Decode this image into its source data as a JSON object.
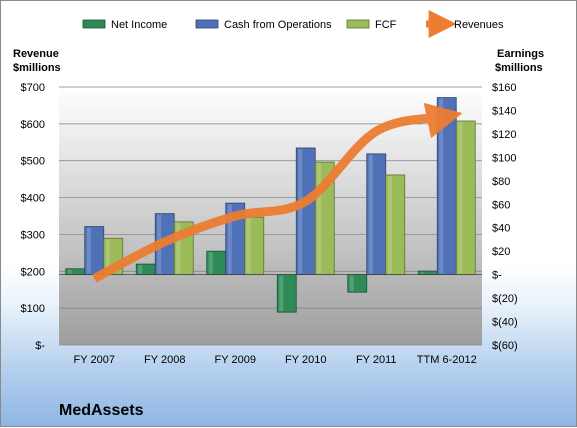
{
  "chart_data": {
    "type": "bar",
    "title": "MedAssets",
    "categories": [
      "FY 2007",
      "FY 2008",
      "FY 2009",
      "FY 2010",
      "FY 2011",
      "TTM 6-2012"
    ],
    "y_left": {
      "label_line1": "Revenue",
      "label_line2": "$millions",
      "ylim": [
        0,
        700
      ],
      "ticks": [
        0,
        100,
        200,
        300,
        400,
        500,
        600,
        700
      ],
      "tick_labels": [
        "$-",
        "$100",
        "$200",
        "$300",
        "$400",
        "$500",
        "$600",
        "$700"
      ]
    },
    "y_right": {
      "label_line1": "Earnings",
      "label_line2": "$millions",
      "ylim": [
        -60,
        160
      ],
      "ticks": [
        -60,
        -40,
        -20,
        0,
        20,
        40,
        60,
        80,
        100,
        120,
        140,
        160
      ],
      "tick_labels": [
        "$(60)",
        "$(40)",
        "$(20)",
        "$-",
        "$20",
        "$40",
        "$60",
        "$80",
        "$100",
        "$120",
        "$140",
        "$160"
      ]
    },
    "series": [
      {
        "name": "Net Income",
        "axis": "right",
        "kind": "bar",
        "color": "#2e8b57",
        "values": [
          5,
          9,
          20,
          -32,
          -15,
          3
        ]
      },
      {
        "name": "Cash from Operations",
        "axis": "right",
        "kind": "bar",
        "color": "#4f71b8",
        "values": [
          41,
          52,
          61,
          108,
          103,
          151
        ]
      },
      {
        "name": "FCF",
        "axis": "right",
        "kind": "bar",
        "color": "#9bbb59",
        "values": [
          31,
          45,
          49,
          96,
          85,
          131
        ]
      },
      {
        "name": "Revenues",
        "axis": "left",
        "kind": "line",
        "color": "#ed7d31",
        "values": [
          180,
          280,
          350,
          390,
          580,
          620
        ]
      }
    ],
    "legend_position": "top",
    "grid": true
  }
}
